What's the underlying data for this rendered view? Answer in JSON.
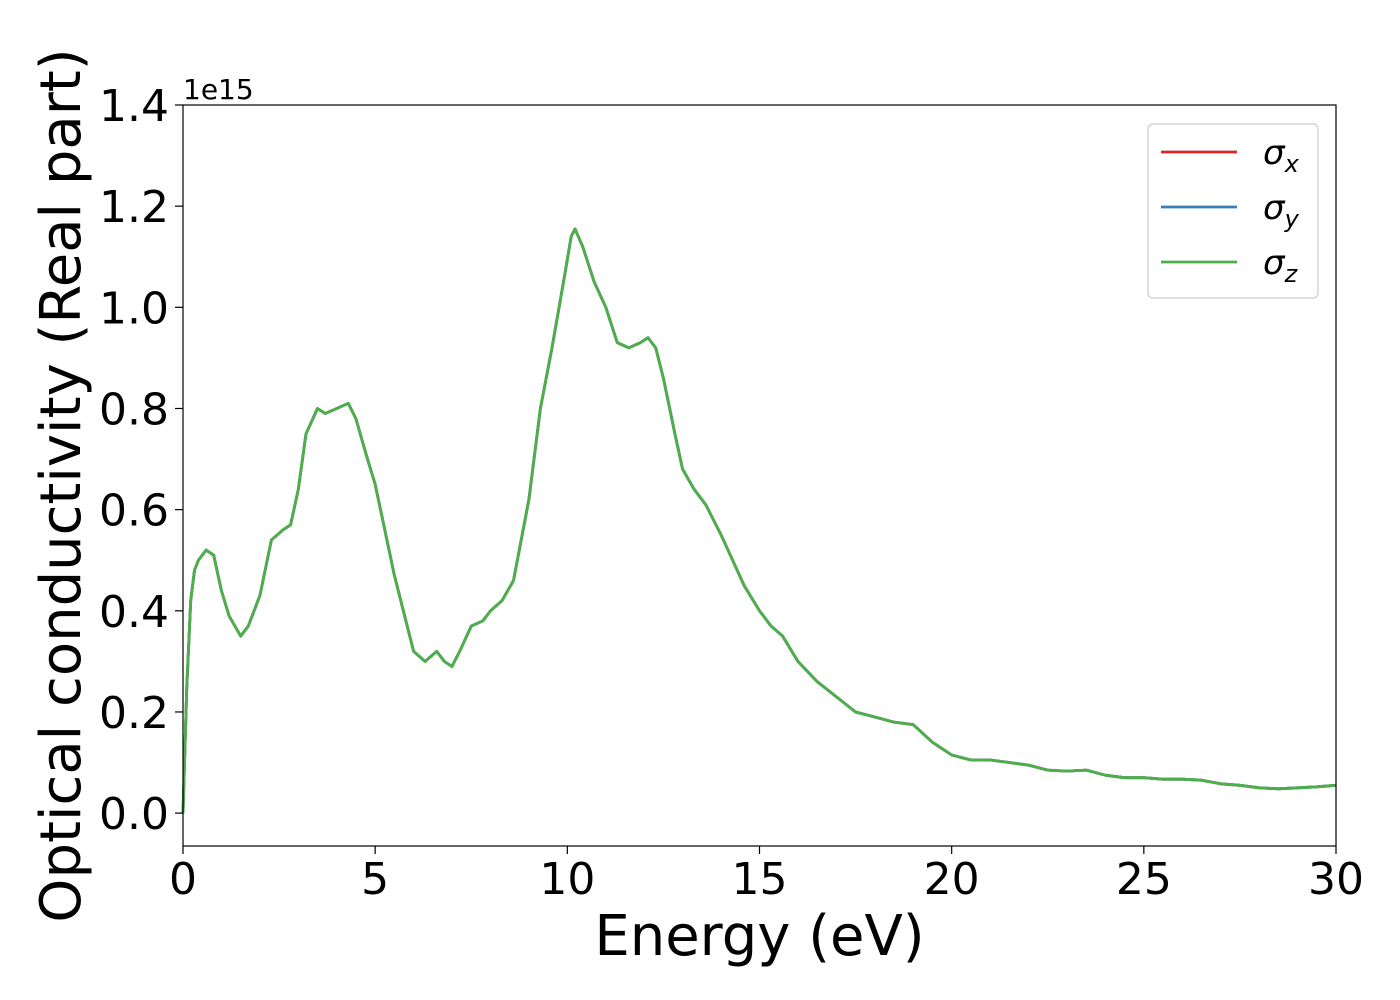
{
  "chart_data": {
    "type": "line",
    "title": "",
    "xlabel": "Energy (eV)",
    "ylabel": "Optical conductivity (Real part)",
    "y_offset_text": "1e15",
    "y_scale_factor": 1000000000000000.0,
    "xlim": [
      0,
      30
    ],
    "ylim": [
      -0.065,
      1.4
    ],
    "xticks": [
      0,
      5,
      10,
      15,
      20,
      25,
      30
    ],
    "xtick_labels": [
      "0",
      "5",
      "10",
      "15",
      "20",
      "25",
      "30"
    ],
    "yticks": [
      0.0,
      0.2,
      0.4,
      0.6,
      0.8,
      1.0,
      1.2,
      1.4
    ],
    "ytick_labels": [
      "0.0",
      "0.2",
      "0.4",
      "0.6",
      "0.8",
      "1.0",
      "1.2",
      "1.4"
    ],
    "grid": false,
    "legend_position": "top-right",
    "x": [
      0.0,
      0.1,
      0.2,
      0.3,
      0.4,
      0.6,
      0.8,
      1.0,
      1.2,
      1.5,
      1.7,
      2.0,
      2.3,
      2.6,
      2.8,
      3.0,
      3.2,
      3.5,
      3.7,
      4.0,
      4.3,
      4.5,
      4.8,
      5.0,
      5.5,
      6.0,
      6.3,
      6.6,
      6.8,
      7.0,
      7.2,
      7.5,
      7.8,
      8.0,
      8.3,
      8.6,
      9.0,
      9.3,
      9.6,
      9.9,
      10.1,
      10.2,
      10.4,
      10.7,
      11.0,
      11.3,
      11.6,
      11.9,
      12.1,
      12.3,
      12.5,
      12.8,
      13.0,
      13.3,
      13.6,
      14.0,
      14.3,
      14.6,
      15.0,
      15.3,
      15.6,
      16.0,
      16.5,
      17.0,
      17.5,
      18.0,
      18.5,
      19.0,
      19.5,
      20.0,
      20.5,
      21.0,
      21.5,
      22.0,
      22.5,
      23.0,
      23.5,
      24.0,
      24.5,
      25.0,
      25.5,
      26.0,
      26.5,
      27.0,
      27.5,
      28.0,
      28.5,
      29.0,
      29.5,
      30.0
    ],
    "series": [
      {
        "name": "σx",
        "color": "#d62728",
        "values": [
          0.0,
          0.25,
          0.42,
          0.48,
          0.5,
          0.52,
          0.51,
          0.44,
          0.39,
          0.35,
          0.37,
          0.43,
          0.54,
          0.56,
          0.57,
          0.64,
          0.75,
          0.8,
          0.79,
          0.8,
          0.81,
          0.78,
          0.7,
          0.65,
          0.47,
          0.32,
          0.3,
          0.32,
          0.3,
          0.29,
          0.32,
          0.37,
          0.38,
          0.4,
          0.42,
          0.46,
          0.62,
          0.8,
          0.92,
          1.05,
          1.14,
          1.155,
          1.12,
          1.05,
          1.0,
          0.93,
          0.92,
          0.93,
          0.94,
          0.92,
          0.86,
          0.75,
          0.68,
          0.64,
          0.61,
          0.55,
          0.5,
          0.45,
          0.4,
          0.37,
          0.35,
          0.3,
          0.26,
          0.23,
          0.2,
          0.19,
          0.18,
          0.175,
          0.14,
          0.115,
          0.105,
          0.105,
          0.1,
          0.095,
          0.085,
          0.083,
          0.085,
          0.075,
          0.07,
          0.07,
          0.067,
          0.067,
          0.065,
          0.058,
          0.055,
          0.05,
          0.048,
          0.05,
          0.052,
          0.055
        ]
      },
      {
        "name": "σy",
        "color": "#377eb8",
        "values": [
          0.0,
          0.25,
          0.42,
          0.48,
          0.5,
          0.52,
          0.51,
          0.44,
          0.39,
          0.35,
          0.37,
          0.43,
          0.54,
          0.56,
          0.57,
          0.64,
          0.75,
          0.8,
          0.79,
          0.8,
          0.81,
          0.78,
          0.7,
          0.65,
          0.47,
          0.32,
          0.3,
          0.32,
          0.3,
          0.29,
          0.32,
          0.37,
          0.38,
          0.4,
          0.42,
          0.46,
          0.62,
          0.8,
          0.92,
          1.05,
          1.14,
          1.155,
          1.12,
          1.05,
          1.0,
          0.93,
          0.92,
          0.93,
          0.94,
          0.92,
          0.86,
          0.75,
          0.68,
          0.64,
          0.61,
          0.55,
          0.5,
          0.45,
          0.4,
          0.37,
          0.35,
          0.3,
          0.26,
          0.23,
          0.2,
          0.19,
          0.18,
          0.175,
          0.14,
          0.115,
          0.105,
          0.105,
          0.1,
          0.095,
          0.085,
          0.083,
          0.085,
          0.075,
          0.07,
          0.07,
          0.067,
          0.067,
          0.065,
          0.058,
          0.055,
          0.05,
          0.048,
          0.05,
          0.052,
          0.055
        ]
      },
      {
        "name": "σz",
        "color": "#4daf4a",
        "values": [
          0.0,
          0.25,
          0.42,
          0.48,
          0.5,
          0.52,
          0.51,
          0.44,
          0.39,
          0.35,
          0.37,
          0.43,
          0.54,
          0.56,
          0.57,
          0.64,
          0.75,
          0.8,
          0.79,
          0.8,
          0.81,
          0.78,
          0.7,
          0.65,
          0.47,
          0.32,
          0.3,
          0.32,
          0.3,
          0.29,
          0.32,
          0.37,
          0.38,
          0.4,
          0.42,
          0.46,
          0.62,
          0.8,
          0.92,
          1.05,
          1.14,
          1.155,
          1.12,
          1.05,
          1.0,
          0.93,
          0.92,
          0.93,
          0.94,
          0.92,
          0.86,
          0.75,
          0.68,
          0.64,
          0.61,
          0.55,
          0.5,
          0.45,
          0.4,
          0.37,
          0.35,
          0.3,
          0.26,
          0.23,
          0.2,
          0.19,
          0.18,
          0.175,
          0.14,
          0.115,
          0.105,
          0.105,
          0.1,
          0.095,
          0.085,
          0.083,
          0.085,
          0.075,
          0.07,
          0.07,
          0.067,
          0.067,
          0.065,
          0.058,
          0.055,
          0.05,
          0.048,
          0.05,
          0.052,
          0.055
        ]
      }
    ],
    "legend": [
      {
        "symbol": "σ",
        "subscript": "x",
        "color": "#d62728"
      },
      {
        "symbol": "σ",
        "subscript": "y",
        "color": "#377eb8"
      },
      {
        "symbol": "σ",
        "subscript": "z",
        "color": "#4daf4a"
      }
    ]
  }
}
